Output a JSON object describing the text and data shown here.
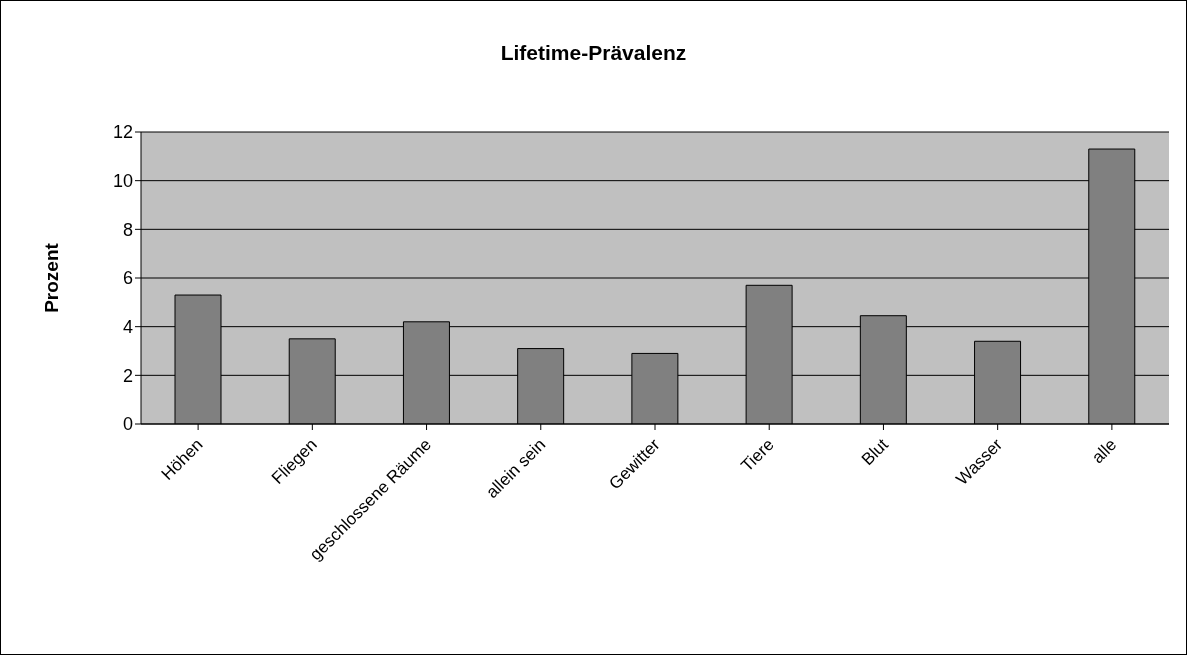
{
  "chart_data": {
    "type": "bar",
    "title": "Lifetime-Prävalenz",
    "ylabel": "Prozent",
    "categories": [
      "Höhen",
      "Fliegen",
      "geschlossene Räume",
      "allein sein",
      "Gewitter",
      "Tiere",
      "Blut",
      "Wasser",
      "alle"
    ],
    "values": [
      5.3,
      3.5,
      4.2,
      3.1,
      2.9,
      5.7,
      4.45,
      3.4,
      11.3
    ],
    "color": "#808080",
    "ylim": [
      0,
      12
    ],
    "yticks": [
      0,
      2,
      4,
      6,
      8,
      10,
      12
    ],
    "grid": "y"
  }
}
